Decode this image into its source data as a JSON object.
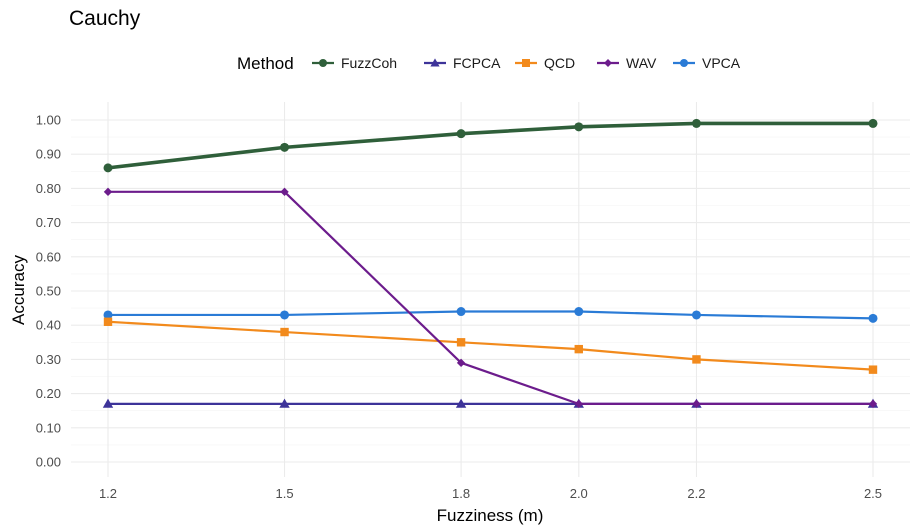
{
  "chart_data": {
    "type": "line",
    "title": "Cauchy",
    "xlabel": "Fuzziness (m)",
    "ylabel": "Accuracy",
    "x": [
      1.2,
      1.5,
      1.8,
      2.0,
      2.2,
      2.5
    ],
    "x_tick_labels": [
      "1.2",
      "1.5",
      "1.8",
      "2.0",
      "2.2",
      "2.5"
    ],
    "ylim": [
      0,
      1
    ],
    "y_ticks": [
      0,
      0.1,
      0.2,
      0.3,
      0.4,
      0.5,
      0.6,
      0.7,
      0.8,
      0.9,
      1.0
    ],
    "y_tick_labels": [
      "0.00",
      "0.10",
      "0.20",
      "0.30",
      "0.40",
      "0.50",
      "0.60",
      "0.70",
      "0.80",
      "0.90",
      "1.00"
    ],
    "grid": true,
    "legend": {
      "title": "Method",
      "position": "top"
    },
    "series": [
      {
        "name": "FuzzCoh",
        "color": "#2f5f3a",
        "marker": "circle",
        "values": [
          0.86,
          0.92,
          0.96,
          0.98,
          0.99,
          0.99
        ]
      },
      {
        "name": "FCPCA",
        "color": "#3d3399",
        "marker": "triangle",
        "values": [
          0.17,
          0.17,
          0.17,
          0.17,
          0.17,
          0.17
        ]
      },
      {
        "name": "QCD",
        "color": "#f28a1c",
        "marker": "square",
        "values": [
          0.41,
          0.38,
          0.35,
          0.33,
          0.3,
          0.27
        ]
      },
      {
        "name": "WAV",
        "color": "#6c1c8c",
        "marker": "diamond",
        "values": [
          0.79,
          0.79,
          0.29,
          0.17,
          0.17,
          0.17
        ]
      },
      {
        "name": "VPCA",
        "color": "#2a7bd6",
        "marker": "circle",
        "values": [
          0.43,
          0.43,
          0.44,
          0.44,
          0.43,
          0.42
        ]
      }
    ]
  }
}
